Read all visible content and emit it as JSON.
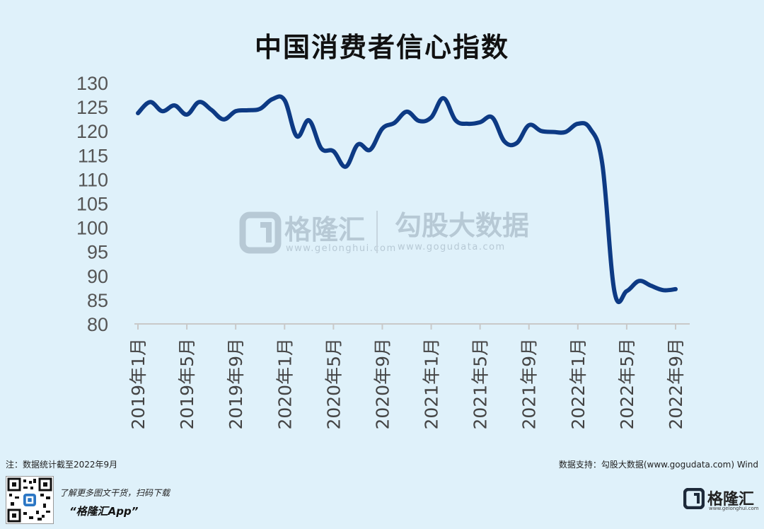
{
  "chart_data": {
    "type": "line",
    "title": "中国消费者信心指数",
    "ylim": [
      80,
      130
    ],
    "yticks": [
      130,
      125,
      120,
      115,
      110,
      105,
      100,
      95,
      90,
      85,
      80
    ],
    "x_tick_labels": [
      "2019年1月",
      "2019年5月",
      "2019年9月",
      "2020年1月",
      "2020年5月",
      "2020年9月",
      "2021年1月",
      "2021年5月",
      "2021年9月",
      "2022年1月",
      "2022年5月",
      "2022年9月"
    ],
    "x": [
      "2019-01",
      "2019-02",
      "2019-03",
      "2019-04",
      "2019-05",
      "2019-06",
      "2019-07",
      "2019-08",
      "2019-09",
      "2019-10",
      "2019-11",
      "2019-12",
      "2020-01",
      "2020-02",
      "2020-03",
      "2020-04",
      "2020-05",
      "2020-06",
      "2020-07",
      "2020-08",
      "2020-09",
      "2020-10",
      "2020-11",
      "2020-12",
      "2021-01",
      "2021-02",
      "2021-03",
      "2021-04",
      "2021-05",
      "2021-06",
      "2021-07",
      "2021-08",
      "2021-09",
      "2021-10",
      "2021-11",
      "2021-12",
      "2022-01",
      "2022-02",
      "2022-03",
      "2022-04",
      "2022-05",
      "2022-06",
      "2022-07",
      "2022-08",
      "2022-09"
    ],
    "values": [
      123.7,
      126.0,
      124.1,
      125.3,
      123.4,
      126.0,
      124.4,
      122.4,
      124.1,
      124.3,
      124.6,
      126.6,
      126.4,
      118.9,
      122.2,
      116.4,
      115.8,
      112.6,
      117.2,
      116.1,
      120.5,
      121.7,
      124.0,
      122.1,
      122.8,
      126.8,
      122.2,
      121.5,
      121.8,
      122.8,
      117.8,
      117.5,
      121.2,
      120.0,
      119.8,
      119.8,
      121.5,
      120.5,
      113.2,
      86.7,
      86.8,
      88.9,
      87.9,
      87.0,
      87.2
    ],
    "line_color": "#0d3a84",
    "grid": false
  },
  "watermark": {
    "brand_1": "格隆汇",
    "url_1": "www.gelonghui.com",
    "brand_2": "勾股大数据",
    "url_2": "www.gogudata.com"
  },
  "footer": {
    "note": "注：数据统计截至2022年9月",
    "source": "数据支持：勾股大数据(www.gogudata.com)  Wind",
    "promo": "了解更多图文干货，扫码下载",
    "app_name": "“格隆汇App”",
    "logo_brand": "格隆汇",
    "logo_url": "www.gelonghui.com"
  }
}
